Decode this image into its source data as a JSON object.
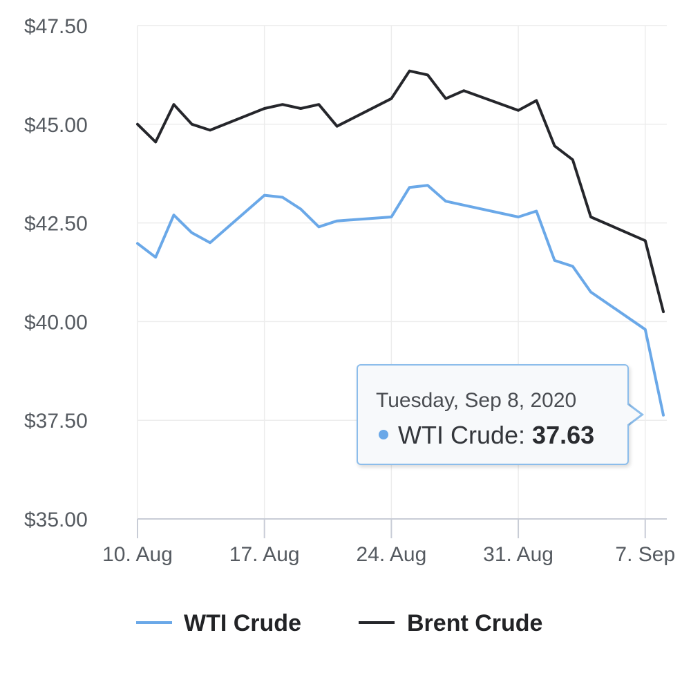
{
  "chart_data": {
    "type": "line",
    "y_tick_labels": [
      "$35.00",
      "$37.50",
      "$40.00",
      "$42.50",
      "$45.00",
      "$47.50"
    ],
    "y_ticks": [
      35,
      37.5,
      40,
      42.5,
      45,
      47.5
    ],
    "ylim": [
      35,
      47.5
    ],
    "x_tick_labels": [
      "10. Aug",
      "17. Aug",
      "24. Aug",
      "31. Aug",
      "7. Sep"
    ],
    "x_tick_dates": [
      "2020-08-10",
      "2020-08-17",
      "2020-08-24",
      "2020-08-31",
      "2020-09-07"
    ],
    "xlim": [
      "2020-08-10",
      "2020-09-08"
    ],
    "grid": true,
    "legend_position": "bottom",
    "series": [
      {
        "name": "WTI Crude",
        "color": "#6aa8e8",
        "x": [
          "2020-08-10",
          "2020-08-11",
          "2020-08-12",
          "2020-08-13",
          "2020-08-14",
          "2020-08-17",
          "2020-08-18",
          "2020-08-19",
          "2020-08-20",
          "2020-08-21",
          "2020-08-24",
          "2020-08-25",
          "2020-08-26",
          "2020-08-27",
          "2020-08-28",
          "2020-08-31",
          "2020-09-01",
          "2020-09-02",
          "2020-09-03",
          "2020-09-04",
          "2020-09-07",
          "2020-09-08"
        ],
        "values": [
          41.98,
          41.63,
          42.7,
          42.25,
          42.0,
          43.2,
          43.15,
          42.85,
          42.4,
          42.55,
          42.65,
          43.4,
          43.45,
          43.05,
          42.95,
          42.65,
          42.8,
          41.55,
          41.4,
          40.75,
          39.8,
          37.63
        ]
      },
      {
        "name": "Brent Crude",
        "color": "#25262b",
        "x": [
          "2020-08-10",
          "2020-08-11",
          "2020-08-12",
          "2020-08-13",
          "2020-08-14",
          "2020-08-17",
          "2020-08-18",
          "2020-08-19",
          "2020-08-20",
          "2020-08-21",
          "2020-08-24",
          "2020-08-25",
          "2020-08-26",
          "2020-08-27",
          "2020-08-28",
          "2020-08-31",
          "2020-09-01",
          "2020-09-02",
          "2020-09-03",
          "2020-09-04",
          "2020-09-07",
          "2020-09-08"
        ],
        "values": [
          45.0,
          44.55,
          45.5,
          45.0,
          44.85,
          45.4,
          45.5,
          45.4,
          45.5,
          44.95,
          45.65,
          46.35,
          46.25,
          45.65,
          45.85,
          45.35,
          45.6,
          44.45,
          44.1,
          42.65,
          42.05,
          40.25
        ]
      }
    ],
    "tooltip": {
      "date": "Tuesday, Sep 8, 2020",
      "series": "WTI Crude",
      "value": "37.63",
      "color": "#6aa8e8"
    }
  }
}
